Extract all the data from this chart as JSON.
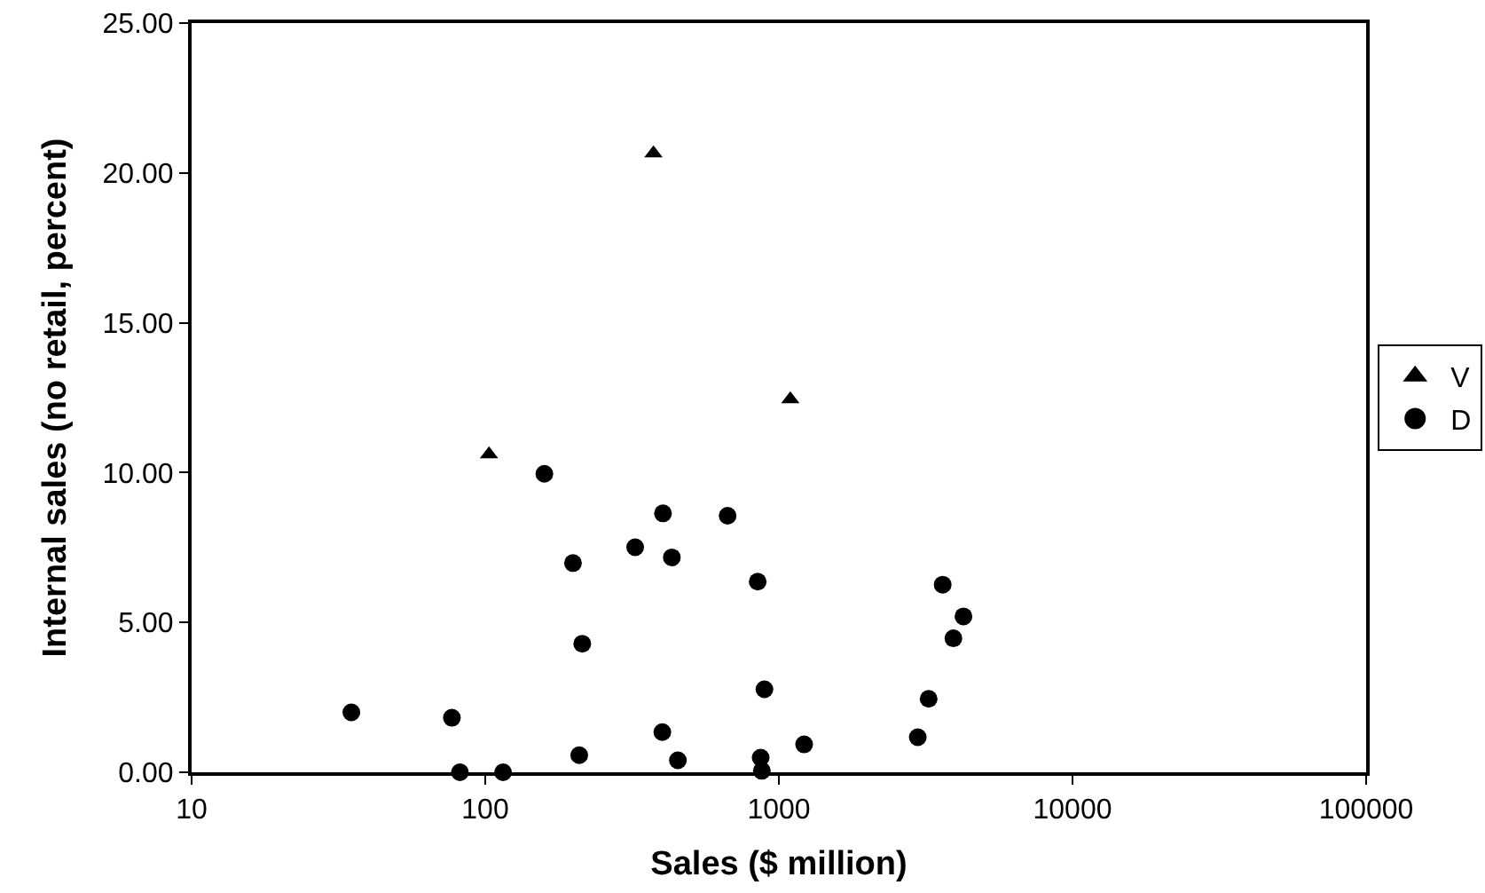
{
  "chart_data": {
    "type": "scatter",
    "xlabel": "Sales ($ million)",
    "ylabel": "Internal sales (no retail, percent)",
    "log": "x",
    "xlim": [
      10,
      100000
    ],
    "xticks": [
      10,
      100,
      1000,
      10000,
      100000
    ],
    "ylim": [
      0,
      25
    ],
    "yticks": [
      {
        "value": 0,
        "label": "0.00"
      },
      {
        "value": 5,
        "label": "5.00"
      },
      {
        "value": 10,
        "label": "10.00"
      },
      {
        "value": 15,
        "label": "15.00"
      },
      {
        "value": 20,
        "label": "20.00"
      },
      {
        "value": 25,
        "label": "25.00"
      }
    ],
    "legend": "right",
    "series": [
      {
        "name": "V",
        "color": "#000000",
        "marker": "triangle",
        "x": [
          374,
          1094,
          103
        ],
        "values": [
          20.65,
          12.45,
          10.61
        ]
      },
      {
        "name": "D",
        "color": "#000000",
        "marker": "circle",
        "x": [
          159,
          403,
          669,
          324,
          432,
          199,
          847,
          3613,
          4253,
          3930,
          214,
          893,
          3236,
          35,
          77,
          401,
          1219,
          2972,
          209,
          453,
          867,
          875,
          82,
          115
        ],
        "values": [
          9.96,
          8.64,
          8.56,
          7.51,
          7.17,
          6.98,
          6.36,
          6.26,
          5.2,
          4.47,
          4.29,
          2.77,
          2.45,
          2.0,
          1.82,
          1.34,
          0.93,
          1.17,
          0.57,
          0.4,
          0.49,
          0.05,
          0,
          0
        ]
      }
    ]
  }
}
